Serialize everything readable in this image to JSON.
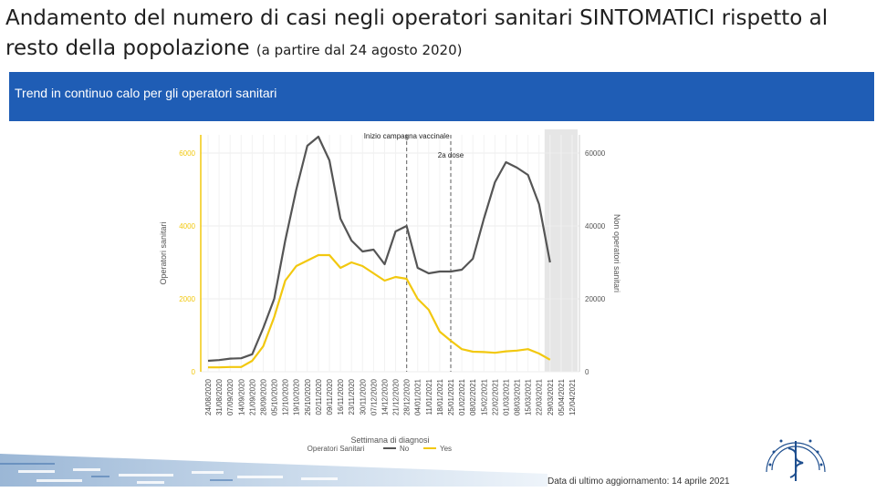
{
  "slide": {
    "title_main": "Andamento del numero di casi negli operatori sanitari SINTOMATICI rispetto al resto della popolazione ",
    "title_sub": "(a partire dal 24 agosto 2020)",
    "banner_text": "Trend in continuo calo per gli operatori sanitari",
    "update_note": "Data di ultimo aggiornamento: 14 aprile 2021",
    "accent_color": "#1f5db5",
    "logo_icon": "institute-seal-icon"
  },
  "chart_data": {
    "type": "line",
    "title": "",
    "xlabel": "Settimana di diagnosi",
    "ylabel_left": "Operatori sanitari",
    "ylabel_right": "Non operatori sanitari",
    "ylim_left": [
      0,
      6500
    ],
    "ylim_right": [
      0,
      65000
    ],
    "yticks_left": [
      0,
      2000,
      4000,
      6000
    ],
    "yticks_right": [
      0,
      20000,
      40000,
      60000
    ],
    "grid": true,
    "legend": {
      "title": "Operatori Sanitari",
      "position": "bottom"
    },
    "categories": [
      "24/08/2020",
      "31/08/2020",
      "07/09/2020",
      "14/09/2020",
      "21/09/2020",
      "28/09/2020",
      "05/10/2020",
      "12/10/2020",
      "19/10/2020",
      "26/10/2020",
      "02/11/2020",
      "09/11/2020",
      "16/11/2020",
      "23/11/2020",
      "30/11/2020",
      "07/12/2020",
      "14/12/2020",
      "21/12/2020",
      "28/12/2020",
      "04/01/2021",
      "11/01/2021",
      "18/01/2021",
      "25/01/2021",
      "01/02/2021",
      "08/02/2021",
      "15/02/2021",
      "22/02/2021",
      "01/03/2021",
      "08/03/2021",
      "15/03/2021",
      "22/03/2021",
      "29/03/2021",
      "05/04/2021",
      "12/04/2021"
    ],
    "series": [
      {
        "name": "No",
        "axis": "right",
        "color": "#555555",
        "values": [
          3000,
          3200,
          3600,
          3700,
          4800,
          12000,
          20000,
          36000,
          50000,
          62000,
          64500,
          58000,
          42000,
          36000,
          33000,
          33500,
          29500,
          38500,
          40000,
          28500,
          27000,
          27500,
          27500,
          28000,
          31000,
          42000,
          52000,
          57500,
          56000,
          54000,
          46000,
          30000,
          null,
          null
        ]
      },
      {
        "name": "Yes",
        "axis": "left",
        "color": "#f2c80f",
        "values": [
          120,
          120,
          130,
          130,
          300,
          700,
          1500,
          2500,
          2900,
          3050,
          3200,
          3200,
          2850,
          3000,
          2900,
          2700,
          2500,
          2600,
          2550,
          2000,
          1700,
          1100,
          850,
          620,
          550,
          540,
          520,
          560,
          580,
          620,
          500,
          330,
          null,
          null
        ]
      }
    ],
    "annotations": [
      {
        "text": "Inizio campagna vaccinale",
        "at": "28/12/2020"
      },
      {
        "text": "2a dose",
        "at": "25/01/2021"
      }
    ],
    "shaded_period": [
      "29/03/2021",
      "12/04/2021"
    ]
  }
}
